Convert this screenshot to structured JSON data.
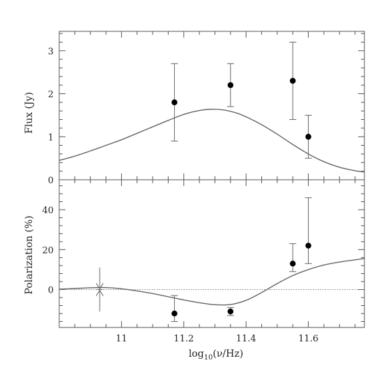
{
  "chart_data": [
    {
      "type": "scatter",
      "panel": "top",
      "ylabel": "Flux (Jy)",
      "xlim": [
        10.8,
        11.78
      ],
      "ylim": [
        0,
        3.45
      ],
      "yticks": [
        0,
        1,
        2,
        3
      ],
      "ytick_labels": [
        "0",
        "1",
        "2",
        "3"
      ],
      "grid": false,
      "points": [
        {
          "x": 11.17,
          "y": 1.8,
          "err_low": 0.9,
          "err_high": 2.7
        },
        {
          "x": 11.35,
          "y": 2.2,
          "err_low": 1.7,
          "err_high": 2.7
        },
        {
          "x": 11.55,
          "y": 2.3,
          "err_low": 1.4,
          "err_high": 3.2
        },
        {
          "x": 11.6,
          "y": 1.0,
          "err_low": 0.5,
          "err_high": 1.5
        }
      ],
      "model_curve": {
        "x": [
          10.8,
          10.85,
          10.9,
          10.95,
          11.0,
          11.05,
          11.1,
          11.15,
          11.2,
          11.25,
          11.29,
          11.33,
          11.37,
          11.41,
          11.45,
          11.5,
          11.55,
          11.6,
          11.65,
          11.7,
          11.75,
          11.78
        ],
        "y": [
          0.45,
          0.55,
          0.67,
          0.8,
          0.93,
          1.08,
          1.23,
          1.38,
          1.52,
          1.61,
          1.64,
          1.62,
          1.55,
          1.43,
          1.28,
          1.06,
          0.82,
          0.6,
          0.42,
          0.29,
          0.21,
          0.18
        ]
      }
    },
    {
      "type": "scatter",
      "panel": "bottom",
      "xlabel": "log10(ν/Hz)",
      "ylabel": "Polarization (%)",
      "xlim": [
        10.8,
        11.78
      ],
      "ylim": [
        -19,
        55
      ],
      "xticks": [
        11.0,
        11.2,
        11.4,
        11.6
      ],
      "xtick_labels": [
        "11",
        "11.2",
        "11.4",
        "11.6"
      ],
      "yticks": [
        0,
        20,
        40
      ],
      "ytick_labels": [
        "0",
        "20",
        "40"
      ],
      "grid": false,
      "zero_line": "dotted",
      "points": [
        {
          "x": 11.17,
          "y": -12,
          "err_low": -16,
          "err_high": -3
        },
        {
          "x": 11.35,
          "y": -11,
          "err_low": -13,
          "err_high": -9
        },
        {
          "x": 11.55,
          "y": 13,
          "err_low": 9,
          "err_high": 23
        },
        {
          "x": 11.6,
          "y": 22,
          "err_low": 13,
          "err_high": 46
        }
      ],
      "limit_marker": {
        "x": 10.93,
        "y": 0,
        "y_from_above": 11,
        "y_from_below": -11
      },
      "model_curve": {
        "x": [
          10.8,
          10.85,
          10.9,
          10.95,
          11.0,
          11.05,
          11.1,
          11.15,
          11.2,
          11.25,
          11.3,
          11.35,
          11.4,
          11.45,
          11.5,
          11.55,
          11.6,
          11.65,
          11.7,
          11.75,
          11.78
        ],
        "y": [
          0.2,
          0.5,
          0.9,
          1.0,
          0.4,
          -0.7,
          -2.0,
          -3.6,
          -5.2,
          -6.6,
          -7.6,
          -7.5,
          -5.4,
          -1.5,
          3.0,
          7.0,
          10.0,
          12.3,
          13.8,
          14.9,
          15.5
        ]
      }
    }
  ]
}
